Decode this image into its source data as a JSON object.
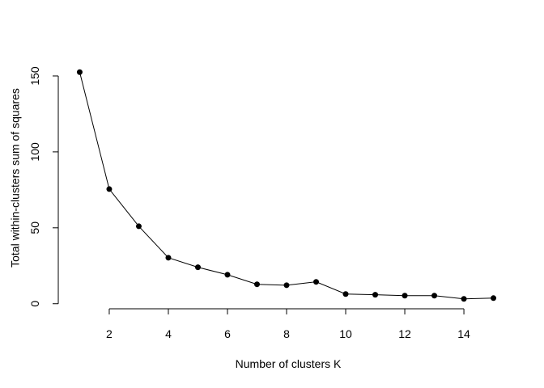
{
  "chart_data": {
    "type": "line",
    "xlabel": "Number of clusters K",
    "ylabel": "Total within-clusters sum of squares",
    "x": [
      1,
      2,
      3,
      4,
      5,
      6,
      7,
      8,
      9,
      10,
      11,
      12,
      13,
      14,
      15
    ],
    "series": [
      {
        "color": "#000000",
        "values": [
          152.5,
          75.5,
          51,
          30.3,
          24,
          19.1,
          12.8,
          12.2,
          14.4,
          6.4,
          5.9,
          5.3,
          5.3,
          3.2,
          3.7
        ]
      }
    ],
    "xlim": [
      0.44,
      15.56
    ],
    "ylim": [
      -2.8,
      158.5
    ],
    "xticks": [
      2,
      4,
      6,
      8,
      10,
      12,
      14
    ],
    "yticks": [
      0,
      50,
      100,
      150
    ],
    "grid": false,
    "markers": true
  }
}
